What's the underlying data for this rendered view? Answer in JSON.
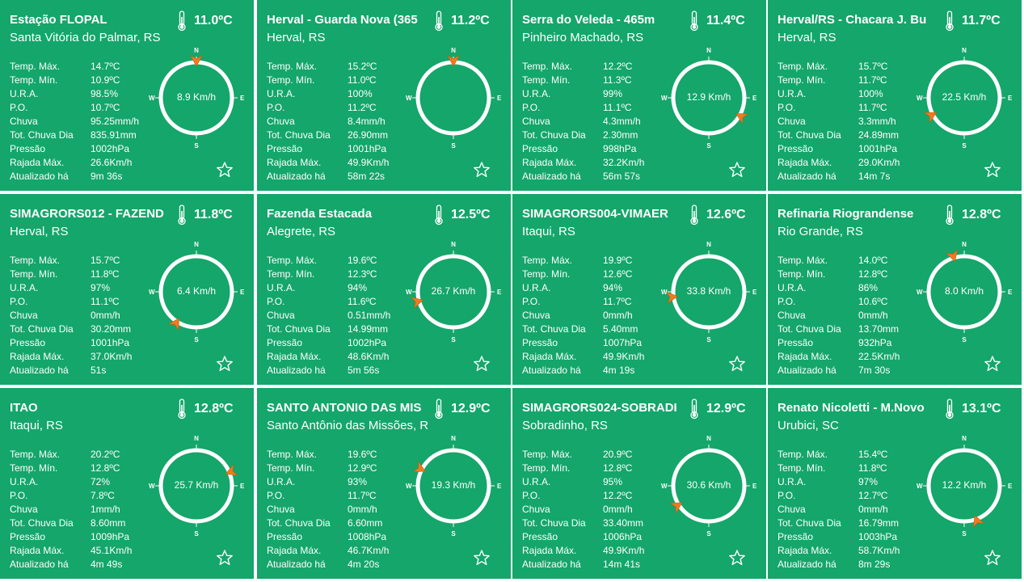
{
  "labels": {
    "temp_max": "Temp. Máx.",
    "temp_min": "Temp. Mín.",
    "ura": "U.R.A.",
    "po": "P.O.",
    "chuva": "Chuva",
    "tot_chuva": "Tot. Chuva Dia",
    "pressao": "Pressão",
    "rajada": "Rajada Máx.",
    "atualizado": "Atualizado há"
  },
  "compass": {
    "n": "N",
    "s": "S",
    "w": "W",
    "e": "E"
  },
  "colors": {
    "card": "#14a66a",
    "text": "#ffffff",
    "arrow": "#f07a1e"
  },
  "stations": [
    {
      "name": "Estação FLOPAL",
      "location": "Santa Vitória do Palmar, RS",
      "temp": "11.0ºC",
      "temp_max": "14.7ºC",
      "temp_min": "10.9ºC",
      "ura": "98.5%",
      "po": "10.7ºC",
      "chuva": "95.25mm/h",
      "tot_chuva": "835.91mm",
      "pressao": "1002hPa",
      "rajada": "26.6Km/h",
      "atualizado": "9m 36s",
      "wind": "8.9 Km/h",
      "dir_deg": 0
    },
    {
      "name": "Herval - Guarda Nova (365",
      "location": "Herval, RS",
      "temp": "11.2ºC",
      "temp_max": "15.2ºC",
      "temp_min": "11.0ºC",
      "ura": "100%",
      "po": "11.2ºC",
      "chuva": "8.4mm/h",
      "tot_chuva": "26.90mm",
      "pressao": "1001hPa",
      "rajada": "49.9Km/h",
      "atualizado": "58m 22s",
      "wind": "",
      "dir_deg": 0
    },
    {
      "name": "Serra do Veleda - 465m",
      "location": "Pinheiro Machado, RS",
      "temp": "11.4ºC",
      "temp_max": "12.2ºC",
      "temp_min": "11.3ºC",
      "ura": "99%",
      "po": "11.1ºC",
      "chuva": "4.3mm/h",
      "tot_chuva": "2.30mm",
      "pressao": "998hPa",
      "rajada": "32.2Km/h",
      "atualizado": "56m 57s",
      "wind": "12.9 Km/h",
      "dir_deg": 120
    },
    {
      "name": "Herval/RS - Chacara J. Bu",
      "location": "Herval, RS",
      "temp": "11.7ºC",
      "temp_max": "15.7ºC",
      "temp_min": "11.7ºC",
      "ura": "100%",
      "po": "11.7ºC",
      "chuva": "3.3mm/h",
      "tot_chuva": "24.89mm",
      "pressao": "1001hPa",
      "rajada": "29.0Km/h",
      "atualizado": "14m 7s",
      "wind": "22.5 Km/h",
      "dir_deg": 242
    },
    {
      "name": "SIMAGRORS012 - FAZEND",
      "location": "Herval, RS",
      "temp": "11.8ºC",
      "temp_max": "15.7ºC",
      "temp_min": "11.8ºC",
      "ura": "97%",
      "po": "11.1ºC",
      "chuva": "0mm/h",
      "tot_chuva": "30.20mm",
      "pressao": "1001hPa",
      "rajada": "37.0Km/h",
      "atualizado": "51s",
      "wind": "6.4 Km/h",
      "dir_deg": 213
    },
    {
      "name": "Fazenda Estacada",
      "location": "Alegrete, RS",
      "temp": "12.5ºC",
      "temp_max": "19.6ºC",
      "temp_min": "12.3ºC",
      "ura": "94%",
      "po": "11.6ºC",
      "chuva": "0.51mm/h",
      "tot_chuva": "14.99mm",
      "pressao": "1002hPa",
      "rajada": "48.6Km/h",
      "atualizado": "5m 56s",
      "wind": "26.7 Km/h",
      "dir_deg": 255
    },
    {
      "name": "SIMAGRORS004-VIMAER",
      "location": "Itaqui, RS",
      "temp": "12.6ºC",
      "temp_max": "19.9ºC",
      "temp_min": "12.6ºC",
      "ura": "94%",
      "po": "11.7ºC",
      "chuva": "0mm/h",
      "tot_chuva": "5.40mm",
      "pressao": "1007hPa",
      "rajada": "49.9Km/h",
      "atualizado": "4m 19s",
      "wind": "33.8 Km/h",
      "dir_deg": 262
    },
    {
      "name": "Refinaria Riograndense",
      "location": "Rio Grande, RS",
      "temp": "12.8ºC",
      "temp_max": "14.0ºC",
      "temp_min": "12.8ºC",
      "ura": "86%",
      "po": "10.6ºC",
      "chuva": "0mm/h",
      "tot_chuva": "13.70mm",
      "pressao": "932hPa",
      "rajada": "22.5Km/h",
      "atualizado": "7m 30s",
      "wind": "8.0 Km/h",
      "dir_deg": 343
    },
    {
      "name": "ITAO",
      "location": "Itaqui, RS",
      "temp": "12.8ºC",
      "temp_max": "20.2ºC",
      "temp_min": "12.8ºC",
      "ura": "72%",
      "po": "7.8ºC",
      "chuva": "1mm/h",
      "tot_chuva": "8.60mm",
      "pressao": "1009hPa",
      "rajada": "45.1Km/h",
      "atualizado": "4m 49s",
      "wind": "25.7 Km/h",
      "dir_deg": 68
    },
    {
      "name": "SANTO ANTONIO DAS MIS",
      "location": "Santo Antônio das Missões, R",
      "temp": "12.9ºC",
      "temp_max": "19.6ºC",
      "temp_min": "12.9ºC",
      "ura": "93%",
      "po": "11.7ºC",
      "chuva": "0mm/h",
      "tot_chuva": "6.60mm",
      "pressao": "1008hPa",
      "rajada": "46.7Km/h",
      "atualizado": "4m 20s",
      "wind": "19.3 Km/h",
      "dir_deg": 297
    },
    {
      "name": "SIMAGRORS024-SOBRADI",
      "location": "Sobradinho, RS",
      "temp": "12.9ºC",
      "temp_max": "20.9ºC",
      "temp_min": "12.8ºC",
      "ura": "95%",
      "po": "12.2ºC",
      "chuva": "0mm/h",
      "tot_chuva": "33.40mm",
      "pressao": "1006hPa",
      "rajada": "49.9Km/h",
      "atualizado": "14m 41s",
      "wind": "30.6 Km/h",
      "dir_deg": 238
    },
    {
      "name": "Renato Nicoletti - M.Novo",
      "location": "Urubici, SC",
      "temp": "13.1ºC",
      "temp_max": "15.4ºC",
      "temp_min": "11.8ºC",
      "ura": "97%",
      "po": "12.7ºC",
      "chuva": "0mm/h",
      "tot_chuva": "16.79mm",
      "pressao": "1003hPa",
      "rajada": "58.7Km/h",
      "atualizado": "8m 29s",
      "wind": "12.2 Km/h",
      "dir_deg": 160
    }
  ]
}
